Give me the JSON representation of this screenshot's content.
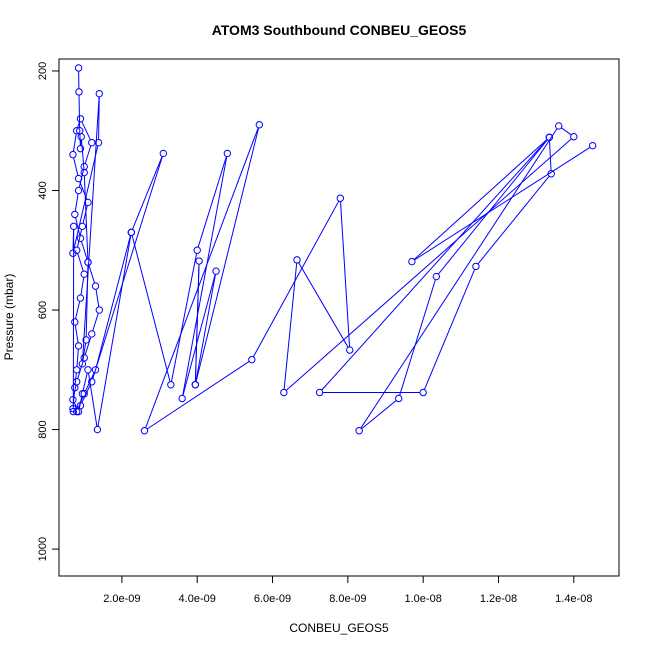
{
  "chart_data": {
    "type": "line",
    "title": "ATOM3 Southbound CONBEU_GEOS5",
    "xlabel": "CONBEU_GEOS5",
    "ylabel": "Pressure (mbar)",
    "xlim": [
      3.3e-10,
      1.52e-08
    ],
    "ylim": [
      1045,
      180
    ],
    "y_reversed": true,
    "grid": false,
    "legend": "none",
    "x_ticks": [
      {
        "value": 2e-09,
        "label": "2.0e-09"
      },
      {
        "value": 4e-09,
        "label": "4.0e-09"
      },
      {
        "value": 6e-09,
        "label": "6.0e-09"
      },
      {
        "value": 8e-09,
        "label": "8.0e-09"
      },
      {
        "value": 1e-08,
        "label": "1.0e-08"
      },
      {
        "value": 1.2e-08,
        "label": "1.2e-08"
      },
      {
        "value": 1.4e-08,
        "label": "1.4e-08"
      }
    ],
    "y_ticks": [
      {
        "value": 200,
        "label": "200"
      },
      {
        "value": 400,
        "label": "400"
      },
      {
        "value": 600,
        "label": "600"
      },
      {
        "value": 800,
        "label": "800"
      },
      {
        "value": 1000,
        "label": "1000"
      }
    ],
    "series": [
      {
        "color": "#0000ff",
        "marker": "open-circle",
        "x": [
          7e-10,
          7.5e-10,
          8e-10,
          8.5e-10,
          7.5e-10,
          9e-10,
          1e-09,
          8e-10,
          9.5e-10,
          1.1e-09,
          8.5e-10,
          7e-10,
          8e-10,
          9e-10,
          1.2e-09,
          1e-09,
          8.5e-10,
          7.5e-10,
          9e-10,
          1.1e-09,
          1.3e-09,
          1.4e-09,
          1.2e-09,
          1e-09,
          8e-10,
          7e-10,
          8.5e-10,
          9.5e-10,
          1.1e-09,
          1.35e-09,
          2.25e-09,
          3.1e-09,
          1.2e-09,
          9e-10,
          8e-10,
          1e-09,
          1.3e-09,
          2.25e-09,
          3.3e-09,
          4e-09,
          4.8e-09,
          3.6e-09,
          4.5e-09,
          3.95e-09,
          4.05e-09,
          3.95e-09,
          5.65e-09,
          2.6e-09,
          5.45e-09,
          7.8e-09,
          8.05e-09,
          6.65e-09,
          6.3e-09,
          1.4e-08,
          1.36e-08,
          8.3e-09,
          9.35e-09,
          1.035e-08,
          1.335e-08,
          1.34e-08,
          1.14e-08,
          1e-08,
          7.25e-09,
          1.335e-08,
          9.7e-09,
          1.45e-08
        ],
        "y": [
          765,
          730,
          700,
          660,
          620,
          580,
          540,
          500,
          460,
          420,
          380,
          340,
          300,
          280,
          320,
          360,
          400,
          440,
          480,
          520,
          560,
          600,
          640,
          680,
          720,
          750,
          770,
          740,
          700,
          800,
          470,
          338,
          720,
          760,
          770,
          740,
          700,
          470,
          725,
          500,
          338,
          748,
          535,
          725,
          518,
          725,
          290,
          802,
          683,
          413,
          667,
          516,
          738,
          310,
          292,
          802,
          748,
          544,
          311,
          372,
          527,
          738,
          738,
          311,
          519,
          325
        ]
      },
      {
        "color": "#0000ff",
        "marker": "open-circle",
        "x": [
          8.5e-10,
          8.6e-10,
          8.8e-10,
          9e-10,
          9.2e-10,
          1e-09,
          1.1e-09,
          1.05e-09,
          9.5e-10,
          1.4e-09,
          1.38e-09,
          7e-10,
          7.2e-10,
          7.1e-10
        ],
        "y": [
          195,
          235,
          300,
          330,
          310,
          370,
          520,
          650,
          690,
          238,
          320,
          505,
          460,
          770
        ]
      }
    ]
  }
}
